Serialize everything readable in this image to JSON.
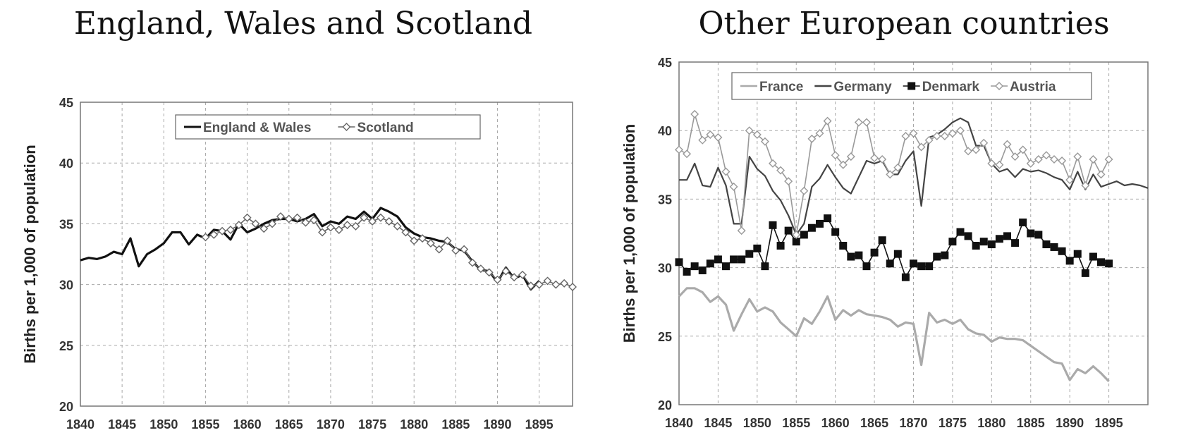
{
  "chart_data": [
    {
      "type": "line",
      "title": "England, Wales and Scotland",
      "ylabel": "Births per 1,000 of population",
      "xlabel": "",
      "xlim": [
        1840,
        1899
      ],
      "ylim": [
        20,
        45
      ],
      "x_ticks": [
        "1840",
        "1845",
        "1850",
        "1855",
        "1860",
        "1865",
        "1870",
        "1875",
        "1880",
        "1885",
        "1890",
        "1895"
      ],
      "y_ticks": [
        "45",
        "40",
        "35",
        "30",
        "25",
        "20"
      ],
      "grid": true,
      "legend_position": "top-center",
      "series": [
        {
          "name": "England & Wales",
          "color": "#111111",
          "marker": "none",
          "x": [
            1840,
            1841,
            1842,
            1843,
            1844,
            1845,
            1846,
            1847,
            1848,
            1849,
            1850,
            1851,
            1852,
            1853,
            1854,
            1855,
            1856,
            1857,
            1858,
            1859,
            1860,
            1861,
            1862,
            1863,
            1864,
            1865,
            1866,
            1867,
            1868,
            1869,
            1870,
            1871,
            1872,
            1873,
            1874,
            1875,
            1876,
            1877,
            1878,
            1879,
            1880,
            1881,
            1882,
            1883,
            1884,
            1885,
            1886,
            1887,
            1888,
            1889,
            1890,
            1891,
            1892,
            1893,
            1894,
            1895
          ],
          "y": [
            32.0,
            32.2,
            32.1,
            32.3,
            32.7,
            32.5,
            33.8,
            31.5,
            32.5,
            32.9,
            33.4,
            34.3,
            34.3,
            33.3,
            34.1,
            33.8,
            34.5,
            34.4,
            33.7,
            35.0,
            34.3,
            34.6,
            35.0,
            35.3,
            35.4,
            35.4,
            35.2,
            35.4,
            35.8,
            34.8,
            35.2,
            35.0,
            35.6,
            35.4,
            36.0,
            35.4,
            36.3,
            36.0,
            35.6,
            34.7,
            34.2,
            33.9,
            33.8,
            33.6,
            33.5,
            32.9,
            32.8,
            31.9,
            31.2,
            31.1,
            30.2,
            31.4,
            30.5,
            30.8,
            29.6,
            30.3
          ]
        },
        {
          "name": "Scotland",
          "color": "#666666",
          "marker": "diamond",
          "x": [
            1855,
            1856,
            1857,
            1858,
            1859,
            1860,
            1861,
            1862,
            1863,
            1864,
            1865,
            1866,
            1867,
            1868,
            1869,
            1870,
            1871,
            1872,
            1873,
            1874,
            1875,
            1876,
            1877,
            1878,
            1879,
            1880,
            1881,
            1882,
            1883,
            1884,
            1885,
            1886,
            1887,
            1888,
            1889,
            1890,
            1891,
            1892,
            1893,
            1894,
            1895,
            1896,
            1897,
            1898,
            1899
          ],
          "y": [
            33.9,
            34.1,
            34.4,
            34.5,
            34.9,
            35.5,
            35.0,
            34.6,
            35.0,
            35.6,
            35.4,
            35.5,
            35.1,
            35.3,
            34.3,
            34.7,
            34.5,
            34.9,
            34.8,
            35.5,
            35.2,
            35.5,
            35.2,
            34.8,
            34.3,
            33.6,
            33.8,
            33.4,
            32.9,
            33.6,
            32.8,
            32.9,
            31.8,
            31.3,
            31.0,
            30.4,
            31.1,
            30.6,
            30.8,
            29.9,
            30.0,
            30.3,
            30.0,
            30.1,
            29.8
          ]
        }
      ]
    },
    {
      "type": "line",
      "title": "Other European countries",
      "ylabel": "Births per 1,000 of population",
      "xlabel": "",
      "xlim": [
        1840,
        1900
      ],
      "ylim": [
        20,
        45
      ],
      "x_ticks": [
        "1840",
        "1845",
        "1850",
        "1855",
        "1860",
        "1865",
        "1870",
        "1875",
        "1880",
        "1885",
        "1890",
        "1895"
      ],
      "y_ticks": [
        "45",
        "40",
        "35",
        "30",
        "25",
        "20"
      ],
      "grid": true,
      "legend_position": "top-center",
      "series": [
        {
          "name": "France",
          "color": "#aaaaaa",
          "marker": "none",
          "x": [
            1840,
            1841,
            1842,
            1843,
            1844,
            1845,
            1846,
            1847,
            1848,
            1849,
            1850,
            1851,
            1852,
            1853,
            1854,
            1855,
            1856,
            1857,
            1858,
            1859,
            1860,
            1861,
            1862,
            1863,
            1864,
            1865,
            1866,
            1867,
            1868,
            1869,
            1870,
            1871,
            1872,
            1873,
            1874,
            1875,
            1876,
            1877,
            1878,
            1879,
            1880,
            1881,
            1882,
            1883,
            1884,
            1885,
            1886,
            1887,
            1888,
            1889,
            1890,
            1891,
            1892,
            1893,
            1894,
            1895
          ],
          "y": [
            27.9,
            28.5,
            28.5,
            28.2,
            27.5,
            27.9,
            27.3,
            25.4,
            26.6,
            27.7,
            26.8,
            27.1,
            26.8,
            26.0,
            25.5,
            25.0,
            26.3,
            25.9,
            26.8,
            27.9,
            26.2,
            26.9,
            26.5,
            26.9,
            26.6,
            26.5,
            26.4,
            26.2,
            25.7,
            26.0,
            25.9,
            22.9,
            26.7,
            26.0,
            26.2,
            25.9,
            26.2,
            25.5,
            25.2,
            25.1,
            24.6,
            24.9,
            24.8,
            24.8,
            24.7,
            24.3,
            23.9,
            23.5,
            23.1,
            23.0,
            21.8,
            22.6,
            22.3,
            22.8,
            22.3,
            21.7
          ]
        },
        {
          "name": "Germany",
          "color": "#444444",
          "marker": "none",
          "x": [
            1840,
            1841,
            1842,
            1843,
            1844,
            1845,
            1846,
            1847,
            1848,
            1849,
            1850,
            1851,
            1852,
            1853,
            1854,
            1855,
            1856,
            1857,
            1858,
            1859,
            1860,
            1861,
            1862,
            1863,
            1864,
            1865,
            1866,
            1867,
            1868,
            1869,
            1870,
            1871,
            1872,
            1873,
            1874,
            1875,
            1876,
            1877,
            1878,
            1879,
            1880,
            1881,
            1882,
            1883,
            1884,
            1885,
            1886,
            1887,
            1888,
            1889,
            1890,
            1891,
            1892,
            1893,
            1894,
            1895,
            1896,
            1897,
            1898,
            1899,
            1900
          ],
          "y": [
            36.4,
            36.4,
            37.6,
            36.0,
            35.9,
            37.3,
            36.0,
            33.2,
            33.2,
            38.1,
            37.2,
            36.7,
            35.6,
            34.9,
            33.8,
            32.4,
            33.2,
            35.9,
            36.5,
            37.5,
            36.6,
            35.8,
            35.4,
            36.6,
            37.8,
            37.6,
            37.8,
            36.8,
            36.8,
            37.8,
            38.5,
            34.5,
            39.5,
            39.7,
            40.1,
            40.6,
            40.9,
            40.6,
            38.9,
            38.9,
            37.6,
            37.0,
            37.2,
            36.6,
            37.2,
            37.0,
            37.1,
            36.9,
            36.6,
            36.4,
            35.7,
            37.0,
            35.7,
            36.8,
            35.9,
            36.1,
            36.3,
            36.0,
            36.1,
            36.0,
            35.8
          ]
        },
        {
          "name": "Denmark",
          "color": "#111111",
          "marker": "square",
          "x": [
            1840,
            1841,
            1842,
            1843,
            1844,
            1845,
            1846,
            1847,
            1848,
            1849,
            1850,
            1851,
            1852,
            1853,
            1854,
            1855,
            1856,
            1857,
            1858,
            1859,
            1860,
            1861,
            1862,
            1863,
            1864,
            1865,
            1866,
            1867,
            1868,
            1869,
            1870,
            1871,
            1872,
            1873,
            1874,
            1875,
            1876,
            1877,
            1878,
            1879,
            1880,
            1881,
            1882,
            1883,
            1884,
            1885,
            1886,
            1887,
            1888,
            1889,
            1890,
            1891,
            1892,
            1893,
            1894,
            1895
          ],
          "y": [
            30.4,
            29.7,
            30.1,
            29.8,
            30.3,
            30.6,
            30.1,
            30.6,
            30.6,
            31.0,
            31.4,
            30.1,
            33.1,
            31.6,
            32.7,
            31.9,
            32.4,
            32.9,
            33.2,
            33.6,
            32.6,
            31.6,
            30.8,
            30.9,
            30.1,
            31.1,
            32.0,
            30.3,
            31.0,
            29.3,
            30.3,
            30.1,
            30.1,
            30.8,
            30.9,
            31.9,
            32.6,
            32.3,
            31.6,
            31.9,
            31.7,
            32.1,
            32.3,
            31.8,
            33.3,
            32.5,
            32.4,
            31.7,
            31.5,
            31.2,
            30.5,
            31.0,
            29.6,
            30.8,
            30.4,
            30.3
          ]
        },
        {
          "name": "Austria",
          "color": "#999999",
          "marker": "diamond",
          "x": [
            1840,
            1841,
            1842,
            1843,
            1844,
            1845,
            1846,
            1847,
            1848,
            1849,
            1850,
            1851,
            1852,
            1853,
            1854,
            1855,
            1856,
            1857,
            1858,
            1859,
            1860,
            1861,
            1862,
            1863,
            1864,
            1865,
            1866,
            1867,
            1868,
            1869,
            1870,
            1871,
            1872,
            1873,
            1874,
            1875,
            1876,
            1877,
            1878,
            1879,
            1880,
            1881,
            1882,
            1883,
            1884,
            1885,
            1886,
            1887,
            1888,
            1889,
            1890,
            1891,
            1892,
            1893,
            1894,
            1895
          ],
          "y": [
            38.6,
            38.3,
            41.2,
            39.3,
            39.7,
            39.5,
            37.0,
            35.9,
            32.7,
            40.0,
            39.7,
            39.2,
            37.6,
            37.1,
            36.3,
            32.4,
            35.6,
            39.4,
            39.8,
            40.7,
            38.2,
            37.5,
            38.1,
            40.6,
            40.6,
            38.0,
            37.9,
            36.8,
            37.3,
            39.6,
            39.8,
            38.8,
            39.3,
            39.6,
            39.6,
            39.8,
            40.0,
            38.5,
            38.6,
            39.1,
            37.6,
            37.5,
            39.0,
            38.1,
            38.6,
            37.6,
            37.9,
            38.2,
            37.9,
            37.8,
            36.4,
            38.1,
            36.0,
            37.9,
            36.8,
            37.9
          ]
        }
      ]
    }
  ]
}
